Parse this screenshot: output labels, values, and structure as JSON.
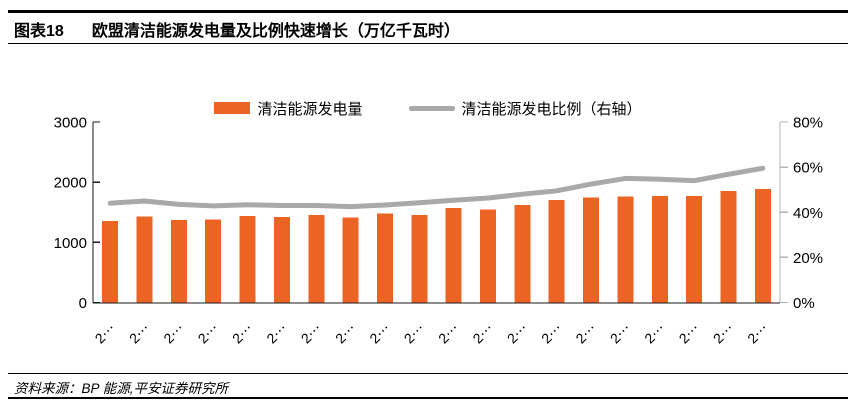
{
  "header": {
    "figure_label": "图表18",
    "title": "欧盟清洁能源发电量及比例快速增长（万亿千瓦时）"
  },
  "legend": [
    {
      "label": "清洁能源发电量",
      "type": "bar",
      "color": "#EC6424"
    },
    {
      "label": "清洁能源发电比例（右轴）",
      "type": "line",
      "color": "#A9A9A9"
    }
  ],
  "chart_data": {
    "type": "bar",
    "subtype": "bar-with-secondary-line",
    "title": "欧盟清洁能源发电量及比例快速增长（万亿千瓦时）",
    "categories": [
      "2⋯",
      "2⋯",
      "2⋯",
      "2⋯",
      "2⋯",
      "2⋯",
      "2⋯",
      "2⋯",
      "2⋯",
      "2⋯",
      "2⋯",
      "2⋯",
      "2⋯",
      "2⋯",
      "2⋯",
      "2⋯",
      "2⋯",
      "2⋯",
      "2⋯",
      "2⋯"
    ],
    "series": [
      {
        "name": "清洁能源发电量",
        "type": "bar",
        "axis": "left",
        "color": "#EC6424",
        "values": [
          1355,
          1430,
          1375,
          1380,
          1440,
          1425,
          1455,
          1410,
          1480,
          1455,
          1570,
          1545,
          1620,
          1700,
          1745,
          1760,
          1770,
          1770,
          1855,
          1890
        ]
      },
      {
        "name": "清洁能源发电比例（右轴）",
        "type": "line",
        "axis": "right",
        "color": "#A9A9A9",
        "values": [
          44.0,
          45.0,
          43.5,
          42.8,
          43.3,
          43.0,
          43.0,
          42.5,
          43.2,
          44.2,
          45.3,
          46.3,
          48.0,
          49.5,
          52.5,
          55.0,
          54.6,
          54.0,
          56.8,
          59.5
        ]
      }
    ],
    "left_axis": {
      "min": 0,
      "max": 3000,
      "tick_values": [
        0,
        1000,
        2000,
        3000
      ],
      "tick_labels": [
        "0",
        "1000",
        "2000",
        "3000"
      ]
    },
    "right_axis": {
      "min": 0,
      "max": 80,
      "tick_values": [
        0,
        20,
        40,
        60,
        80
      ],
      "tick_labels": [
        "0%",
        "20%",
        "40%",
        "60%",
        "80%"
      ]
    },
    "grid": false,
    "legend_position": "top",
    "colors": {
      "bar": "#EC6424",
      "line": "#A9A9A9",
      "axis_dark": "#1a1a1a",
      "axis_light": "#b3b3b3",
      "text": "#000000"
    }
  },
  "footer": {
    "source": "资料来源：BP 能源,平安证券研究所"
  }
}
